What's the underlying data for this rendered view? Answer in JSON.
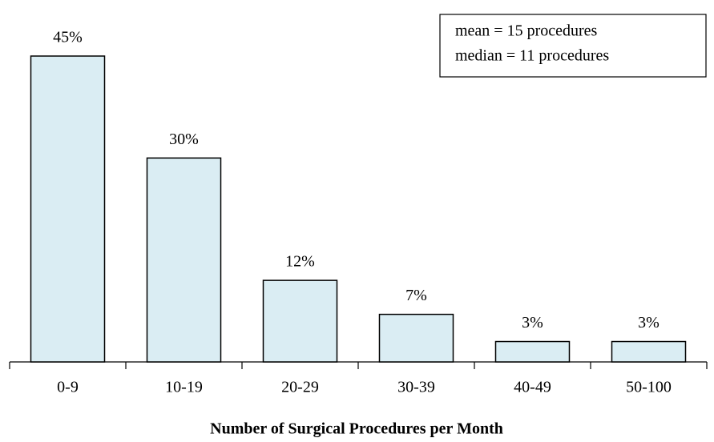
{
  "chart_data": {
    "type": "bar",
    "x_label": "Number of Surgical Procedures per Month",
    "categories": [
      "0-9",
      "10-19",
      "20-29",
      "30-39",
      "40-49",
      "50-100"
    ],
    "values": [
      45,
      30,
      12,
      7,
      3,
      3
    ],
    "value_labels": [
      "45%",
      "30%",
      "12%",
      "7%",
      "3%",
      "3%"
    ],
    "color": "#daedf3",
    "annotations": [
      "mean = 15 procedures",
      "median = 11 procedures"
    ]
  }
}
